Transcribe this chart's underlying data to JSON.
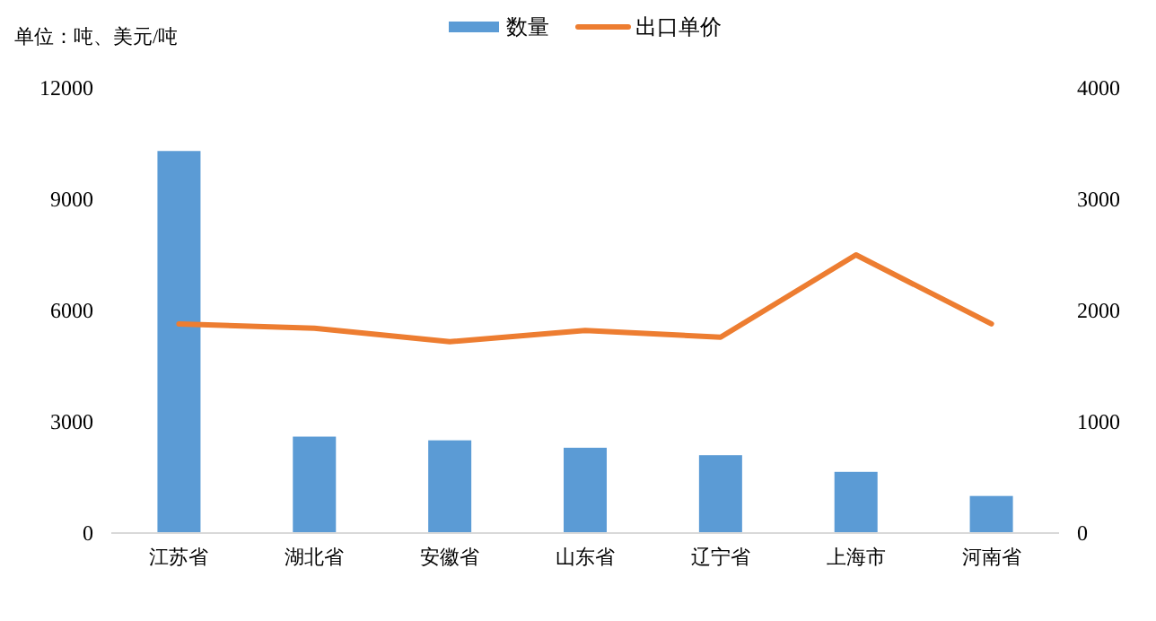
{
  "chart_data": {
    "type": "bar",
    "categories": [
      "江苏省",
      "湖北省",
      "安徽省",
      "山东省",
      "辽宁省",
      "上海市",
      "河南省"
    ],
    "series": [
      {
        "name": "数量",
        "color": "#5b9bd5",
        "values": [
          10300,
          2600,
          2500,
          2300,
          2100,
          1650,
          1000
        ]
      },
      {
        "name": "出口单价",
        "type": "line",
        "axis": "y2",
        "color": "#ed7d31",
        "values": [
          1880,
          1840,
          1720,
          1820,
          1760,
          2500,
          1880
        ]
      }
    ],
    "ylim": [
      0,
      12000
    ],
    "yticks": [
      0,
      3000,
      6000,
      9000,
      12000
    ],
    "y2lim": [
      0,
      4000
    ],
    "y2ticks": [
      0,
      1000,
      2000,
      3000,
      4000
    ],
    "legend": "top",
    "grid": false,
    "annotations": [
      "单位：吨、美元/吨"
    ]
  }
}
